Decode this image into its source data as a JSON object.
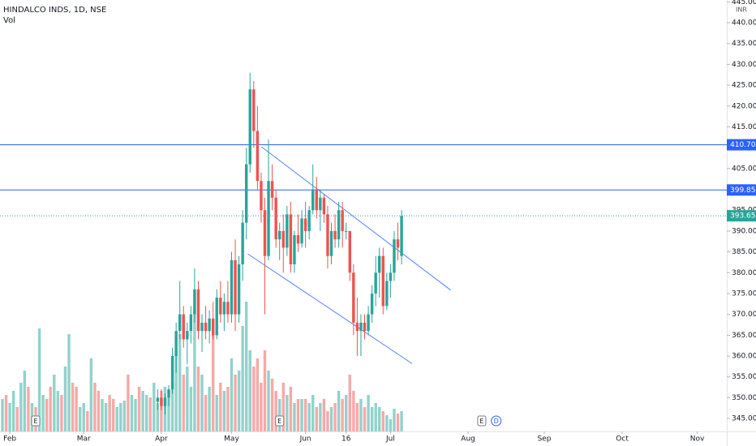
{
  "chart_data": {
    "type": "candlestick",
    "title": "HINDALCO INDS, 1D, NSE",
    "volume_label": "Vol",
    "currency": "INR",
    "up_color": "#26a69a",
    "down_color": "#ef5350",
    "x": [
      0,
      1,
      2,
      3,
      4,
      5,
      6,
      7,
      8,
      9,
      10,
      11,
      12,
      13,
      14,
      15,
      16,
      17,
      18,
      19,
      20,
      21,
      22,
      23,
      24,
      25,
      26,
      27,
      28,
      29,
      30,
      31,
      32,
      33,
      34,
      35,
      36,
      37,
      38,
      39,
      40,
      41,
      42,
      43,
      44,
      45,
      46,
      47,
      48,
      49,
      50,
      51,
      52,
      53,
      54,
      55,
      56,
      57,
      58,
      59,
      60,
      61,
      62,
      63,
      64,
      65,
      66,
      67,
      68,
      69,
      70,
      71,
      72,
      73,
      74,
      75,
      76,
      77,
      78,
      79,
      80,
      81,
      82,
      83,
      84,
      85,
      86,
      87,
      88,
      89,
      90,
      91,
      92,
      93,
      94,
      95,
      96,
      97,
      98,
      99,
      100,
      101,
      102,
      103,
      104,
      105,
      106,
      107,
      108
    ],
    "open": [
      null,
      null,
      null,
      null,
      null,
      null,
      null,
      null,
      null,
      null,
      null,
      null,
      null,
      null,
      null,
      null,
      null,
      null,
      null,
      null,
      null,
      null,
      null,
      null,
      null,
      null,
      null,
      null,
      null,
      null,
      null,
      null,
      null,
      null,
      null,
      null,
      null,
      null,
      null,
      null,
      null,
      null,
      349,
      350,
      348,
      350,
      352,
      360,
      366,
      370,
      364,
      366,
      370,
      376,
      366,
      368,
      366,
      369,
      365,
      374,
      370,
      373,
      370,
      383,
      370,
      382,
      392,
      406,
      424,
      414,
      402,
      395,
      384,
      402,
      398,
      388,
      390,
      386,
      394,
      382,
      389,
      387,
      393,
      390,
      395,
      400,
      395,
      398,
      394,
      384,
      390,
      388,
      395,
      390,
      390,
      380,
      368,
      366,
      368,
      366,
      370,
      375,
      380,
      384,
      372,
      378,
      380,
      388,
      384
    ],
    "high": [
      null,
      null,
      null,
      null,
      null,
      null,
      null,
      null,
      null,
      null,
      null,
      null,
      null,
      null,
      null,
      null,
      null,
      null,
      null,
      null,
      null,
      null,
      null,
      null,
      null,
      null,
      null,
      null,
      null,
      null,
      null,
      null,
      null,
      null,
      null,
      null,
      null,
      null,
      null,
      null,
      null,
      null,
      352,
      352,
      351,
      353,
      362,
      368,
      378,
      372,
      368,
      372,
      381,
      378,
      370,
      372,
      371,
      373,
      376,
      378,
      375,
      378,
      385,
      388,
      384,
      395,
      410,
      428,
      426,
      420,
      404,
      398,
      412,
      406,
      400,
      392,
      394,
      396,
      397,
      390,
      394,
      395,
      397,
      396,
      406,
      403,
      400,
      399,
      396,
      392,
      394,
      397,
      397,
      392,
      390,
      382,
      374,
      370,
      370,
      372,
      377,
      384,
      386,
      386,
      380,
      382,
      390,
      392,
      395
    ],
    "low": [
      null,
      null,
      null,
      null,
      null,
      null,
      null,
      null,
      null,
      null,
      null,
      null,
      null,
      null,
      null,
      null,
      null,
      null,
      null,
      null,
      null,
      null,
      null,
      null,
      null,
      null,
      null,
      null,
      null,
      null,
      null,
      null,
      null,
      null,
      null,
      null,
      null,
      null,
      null,
      null,
      null,
      null,
      347,
      347,
      346,
      348,
      351,
      356,
      364,
      362,
      358,
      363,
      368,
      364,
      361,
      364,
      363,
      364,
      364,
      368,
      366,
      368,
      368,
      366,
      368,
      378,
      388,
      404,
      410,
      400,
      392,
      370,
      383,
      395,
      386,
      383,
      380,
      384,
      380,
      380,
      385,
      386,
      386,
      388,
      394,
      393,
      390,
      392,
      381,
      382,
      386,
      386,
      386,
      388,
      378,
      365,
      360,
      360,
      364,
      365,
      368,
      372,
      374,
      370,
      371,
      374,
      378,
      383,
      382
    ],
    "close": [
      null,
      null,
      null,
      null,
      null,
      null,
      null,
      null,
      null,
      null,
      null,
      null,
      null,
      null,
      null,
      null,
      null,
      null,
      null,
      null,
      null,
      null,
      null,
      null,
      null,
      null,
      null,
      null,
      null,
      null,
      null,
      null,
      null,
      null,
      null,
      null,
      null,
      null,
      null,
      null,
      null,
      null,
      350,
      348,
      350,
      352,
      360,
      366,
      370,
      364,
      366,
      370,
      376,
      366,
      368,
      366,
      369,
      365,
      374,
      370,
      373,
      370,
      383,
      370,
      382,
      392,
      406,
      424,
      414,
      402,
      395,
      384,
      402,
      398,
      388,
      390,
      386,
      394,
      382,
      389,
      387,
      393,
      390,
      395,
      400,
      395,
      398,
      394,
      384,
      390,
      388,
      395,
      390,
      390,
      380,
      368,
      366,
      368,
      366,
      370,
      375,
      380,
      384,
      372,
      378,
      380,
      388,
      386,
      393.65
    ],
    "volume": [
      40,
      45,
      35,
      50,
      30,
      60,
      75,
      55,
      35,
      30,
      127,
      45,
      40,
      55,
      70,
      50,
      45,
      80,
      120,
      60,
      55,
      30,
      35,
      25,
      90,
      60,
      50,
      40,
      35,
      45,
      40,
      30,
      35,
      38,
      70,
      45,
      40,
      55,
      50,
      45,
      42,
      60,
      35,
      50,
      55,
      50,
      60,
      100,
      120,
      70,
      80,
      55,
      150,
      80,
      70,
      45,
      55,
      120,
      45,
      60,
      50,
      55,
      90,
      70,
      75,
      130,
      160,
      100,
      80,
      90,
      60,
      100,
      75,
      65,
      50,
      40,
      60,
      45,
      55,
      35,
      40,
      40,
      40,
      35,
      45,
      30,
      35,
      40,
      25,
      30,
      35,
      50,
      40,
      45,
      70,
      50,
      35,
      40,
      30,
      45,
      30,
      35,
      30,
      25,
      20,
      15,
      28,
      22,
      25
    ],
    "volume_up": [
      true,
      false,
      true,
      true,
      false,
      true,
      true,
      false,
      true,
      false,
      true,
      true,
      false,
      false,
      true,
      true,
      false,
      true,
      true,
      false,
      false,
      true,
      true,
      false,
      true,
      false,
      false,
      true,
      true,
      false,
      false,
      true,
      true,
      true,
      false,
      true,
      true,
      false,
      true,
      true,
      false,
      true,
      true,
      false,
      true,
      true,
      true,
      true,
      true,
      false,
      true,
      true,
      true,
      false,
      true,
      false,
      true,
      false,
      true,
      false,
      true,
      false,
      true,
      false,
      true,
      true,
      true,
      true,
      false,
      false,
      false,
      false,
      true,
      false,
      false,
      true,
      false,
      true,
      false,
      true,
      false,
      true,
      false,
      true,
      true,
      false,
      true,
      false,
      false,
      true,
      false,
      true,
      false,
      true,
      false,
      false,
      false,
      true,
      false,
      true,
      true,
      true,
      true,
      false,
      true,
      true,
      true,
      false,
      true
    ],
    "volume_lim": [
      0,
      140
    ],
    "xlim": [
      -0.66,
      196
    ],
    "xticks": [
      {
        "value": 2,
        "label": "Feb"
      },
      {
        "value": 22,
        "label": "Mar"
      },
      {
        "value": 43,
        "label": "Apr"
      },
      {
        "value": 62,
        "label": "May"
      },
      {
        "value": 82,
        "label": "Jun"
      },
      {
        "value": 93,
        "label": "16"
      },
      {
        "value": 105,
        "label": "Jul"
      },
      {
        "value": 126,
        "label": "Aug"
      },
      {
        "value": 146.6,
        "label": "Sep"
      },
      {
        "value": 167.7,
        "label": "Oct"
      },
      {
        "value": 188,
        "label": "Nov"
      }
    ],
    "ylim": [
      341.9,
      445.45
    ],
    "yticks": [
      {
        "value": 345,
        "label": "345.00"
      },
      {
        "value": 350,
        "label": "350.00"
      },
      {
        "value": 355,
        "label": "355.00"
      },
      {
        "value": 360,
        "label": "360.00"
      },
      {
        "value": 365,
        "label": "365.00"
      },
      {
        "value": 370,
        "label": "370.00"
      },
      {
        "value": 375,
        "label": "375.00"
      },
      {
        "value": 380,
        "label": "380.00"
      },
      {
        "value": 385,
        "label": "385.00"
      },
      {
        "value": 390,
        "label": "390.00"
      },
      {
        "value": 395,
        "label": "395.00"
      },
      {
        "value": 400,
        "label": "400.00"
      },
      {
        "value": 405,
        "label": "405.00"
      },
      {
        "value": 410,
        "label": "410.00"
      },
      {
        "value": 415,
        "label": "415.00"
      },
      {
        "value": 420,
        "label": "420.00"
      },
      {
        "value": 425,
        "label": "425.00"
      },
      {
        "value": 430,
        "label": "430.00"
      },
      {
        "value": 435,
        "label": "435.00"
      },
      {
        "value": 440,
        "label": "440.00"
      },
      {
        "value": 445,
        "label": "445.00"
      }
    ],
    "hlines": [
      {
        "value": 410.7,
        "label": "410.70",
        "color": "#2962ff"
      },
      {
        "value": 399.85,
        "label": "399.85",
        "color": "#2962ff"
      }
    ],
    "last_price": 393.65,
    "trendlines": [
      {
        "x": [
          70.1,
          121.3
        ],
        "y": [
          410.2,
          375.8
        ],
        "color": "#2962ff"
      },
      {
        "x": [
          66.4,
          110.8
        ],
        "y": [
          384.5,
          358.2
        ],
        "color": "#2962ff"
      }
    ],
    "events": [
      {
        "label": "E",
        "x": 9
      },
      {
        "label": "E",
        "x": 75
      },
      {
        "label": "E",
        "x": 129.7
      },
      {
        "label": "D",
        "x": 133.6
      }
    ]
  }
}
